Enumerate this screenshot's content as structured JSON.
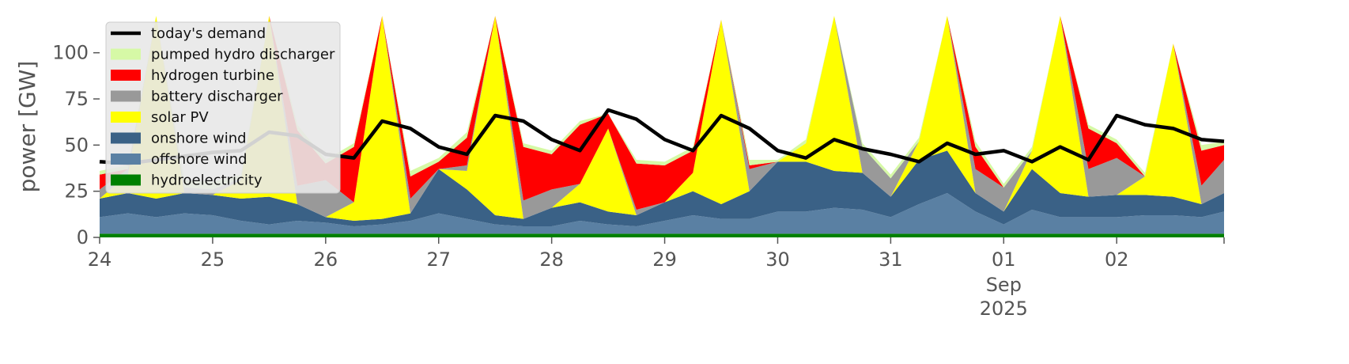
{
  "chart_data": {
    "type": "area",
    "title": "",
    "xlabel": "",
    "ylabel": "power [GW]",
    "ylim": [
      0,
      120
    ],
    "yticks": [
      0,
      25,
      50,
      75,
      100
    ],
    "xticks": [
      {
        "label": "24",
        "sub": ""
      },
      {
        "label": "25",
        "sub": ""
      },
      {
        "label": "26",
        "sub": ""
      },
      {
        "label": "27",
        "sub": ""
      },
      {
        "label": "28",
        "sub": ""
      },
      {
        "label": "29",
        "sub": ""
      },
      {
        "label": "30",
        "sub": ""
      },
      {
        "label": "31",
        "sub": ""
      },
      {
        "label": "01",
        "sub": "Sep"
      },
      {
        "label": "02",
        "sub": ""
      }
    ],
    "x_month_label": "Sep",
    "x_year_label": "2025",
    "grid": false,
    "legend_placement": "top-left",
    "x_days": [
      24,
      24.25,
      24.5,
      24.75,
      25,
      25.25,
      25.5,
      25.75,
      26,
      26.25,
      26.5,
      26.75,
      27,
      27.25,
      27.5,
      27.75,
      28,
      28.25,
      28.5,
      28.75,
      29,
      29.25,
      29.5,
      29.75,
      30,
      30.25,
      30.5,
      30.75,
      31,
      31.25,
      31.5,
      31.75,
      32,
      32.25,
      32.5,
      32.75,
      33,
      33.25,
      33.5,
      33.75,
      33.95
    ],
    "series": [
      {
        "name": "hydroelectricity",
        "color": "#008000",
        "values": [
          2,
          2,
          2,
          2,
          2,
          2,
          2,
          2,
          2,
          2,
          2,
          2,
          2,
          2,
          2,
          2,
          2,
          2,
          2,
          2,
          2,
          2,
          2,
          2,
          2,
          2,
          2,
          2,
          2,
          2,
          2,
          2,
          2,
          2,
          2,
          2,
          2,
          2,
          2,
          2,
          2
        ]
      },
      {
        "name": "offshore wind",
        "color": "#5a80a3",
        "values": [
          9,
          11,
          9,
          11,
          10,
          7,
          5,
          7,
          6,
          4,
          5,
          7,
          11,
          8,
          5,
          4,
          4,
          7,
          5,
          4,
          7,
          10,
          8,
          8,
          12,
          12,
          14,
          13,
          9,
          16,
          22,
          12,
          5,
          13,
          9,
          9,
          9,
          10,
          10,
          9,
          12
        ]
      },
      {
        "name": "onshore wind",
        "color": "#3a6186",
        "values": [
          10,
          11,
          10,
          11,
          11,
          12,
          15,
          9,
          3,
          3,
          3,
          4,
          24,
          16,
          5,
          4,
          10,
          10,
          7,
          6,
          10,
          13,
          8,
          15,
          27,
          27,
          20,
          20,
          11,
          24,
          23,
          10,
          7,
          22,
          13,
          11,
          12,
          11,
          10,
          7,
          10
        ]
      },
      {
        "name": "solar PV",
        "color": "#ffff00",
        "values": [
          0,
          10,
          120,
          0,
          0,
          10,
          120,
          0,
          0,
          10,
          120,
          0,
          0,
          10,
          120,
          0,
          0,
          10,
          45,
          0,
          0,
          10,
          100,
          0,
          0,
          10,
          120,
          0,
          0,
          10,
          120,
          0,
          0,
          10,
          100,
          0,
          0,
          10,
          83,
          0,
          0
        ]
      },
      {
        "name": "battery discharger",
        "color": "#999999",
        "values": [
          5,
          3,
          0,
          3,
          3,
          1,
          0,
          10,
          20,
          0,
          0,
          8,
          0,
          3,
          0,
          10,
          10,
          0,
          0,
          3,
          0,
          0,
          0,
          12,
          0,
          0,
          0,
          14,
          10,
          0,
          0,
          13,
          13,
          0,
          0,
          15,
          20,
          0,
          0,
          10,
          18
        ]
      },
      {
        "name": "hydrogen turbine",
        "color": "#ff0000",
        "values": [
          8,
          0,
          0,
          0,
          0,
          0,
          0,
          30,
          9,
          30,
          0,
          12,
          4,
          15,
          0,
          29,
          19,
          32,
          8,
          25,
          20,
          12,
          0,
          2,
          0,
          0,
          0,
          0,
          0,
          0,
          0,
          12,
          0,
          0,
          0,
          22,
          8,
          0,
          0,
          19,
          8
        ]
      },
      {
        "name": "pumped hydro discharger",
        "color": "#d6f9a6",
        "values": [
          2,
          2,
          0,
          4,
          4,
          2,
          0,
          3,
          2,
          2,
          0,
          3,
          2,
          3,
          0,
          2,
          2,
          2,
          0,
          2,
          2,
          2,
          0,
          3,
          1,
          2,
          0,
          2,
          2,
          2,
          0,
          3,
          2,
          2,
          0,
          2,
          2,
          2,
          0,
          3,
          2
        ]
      }
    ],
    "demand": {
      "name": "today's demand",
      "color": "#000000",
      "values": [
        41,
        40,
        42,
        44,
        46,
        47,
        57,
        55,
        45,
        43,
        63,
        59,
        49,
        45,
        66,
        63,
        53,
        47,
        69,
        64,
        53,
        47,
        66,
        59,
        47,
        43,
        53,
        48,
        45,
        41,
        51,
        45,
        47,
        41,
        49,
        42,
        66,
        61,
        59,
        53,
        52
      ]
    }
  }
}
